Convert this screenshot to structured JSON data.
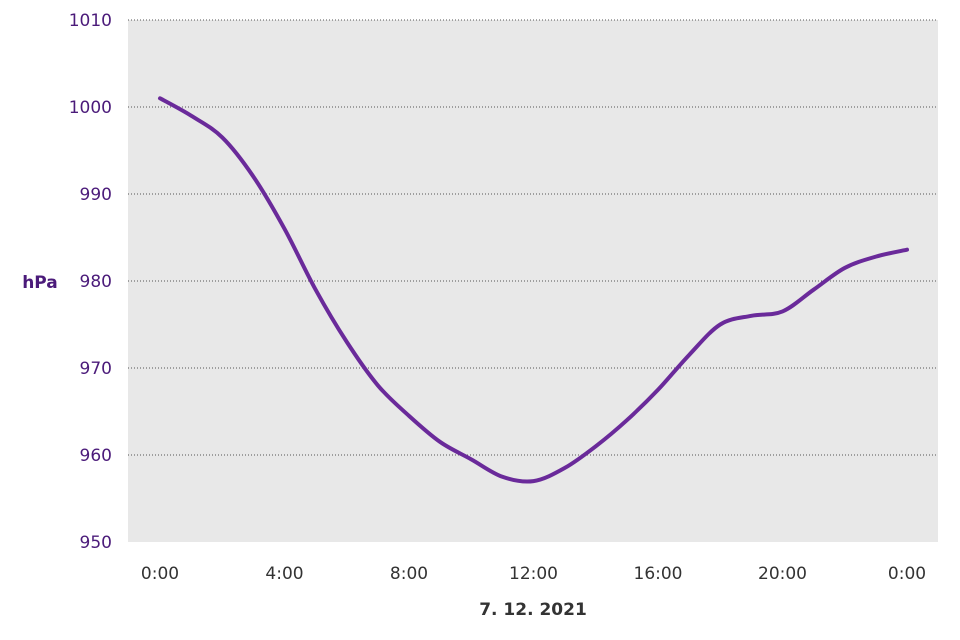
{
  "chart_data": {
    "type": "line",
    "title": "",
    "xlabel": "7. 12. 2021",
    "ylabel": "hPa",
    "x_tick_labels": [
      "0:00",
      "4:00",
      "8:00",
      "12:00",
      "16:00",
      "20:00",
      "0:00"
    ],
    "y_ticks": [
      950,
      960,
      970,
      980,
      990,
      1000,
      1010
    ],
    "ylim": [
      950,
      1010
    ],
    "xlim_hours": [
      0,
      24
    ],
    "grid": "horizontal dotted",
    "series": [
      {
        "color": "#6a2a9a",
        "x_hours": [
          0,
          1,
          2,
          3,
          4,
          5,
          6,
          7,
          8,
          9,
          10,
          11,
          12,
          13,
          14,
          15,
          16,
          17,
          18,
          19,
          20,
          21,
          22,
          23,
          24
        ],
        "values": [
          1001,
          999,
          996.5,
          992,
          986,
          979,
          973,
          968,
          964.5,
          961.5,
          959.5,
          957.5,
          957,
          958.5,
          961,
          964,
          967.5,
          971.5,
          975,
          976,
          976.5,
          979,
          981.5,
          982.8,
          983.6
        ]
      }
    ]
  },
  "colors": {
    "plot_background": "#e8e8e8",
    "line": "#6a2a9a",
    "y_text": "#4b1b7a"
  }
}
